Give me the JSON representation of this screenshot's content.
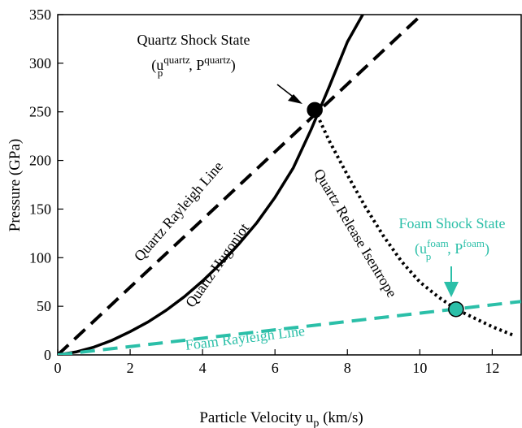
{
  "chart_data": {
    "type": "line",
    "xlabel": "Particle Velocity u",
    "xlabel_sub": "p",
    "xlabel_unit": " (km/s)",
    "ylabel": "Pressure (GPa)",
    "xlim": [
      0,
      12.8
    ],
    "ylim": [
      0,
      350
    ],
    "x_ticks": [
      0,
      2,
      4,
      6,
      8,
      10,
      12
    ],
    "y_ticks": [
      0,
      50,
      100,
      150,
      200,
      250,
      300,
      350
    ],
    "grid": false,
    "colors": {
      "black": "#000000",
      "foam": "#2bbfa8"
    },
    "series": [
      {
        "name": "Quartz Hugoniot",
        "style": "solid",
        "color": "#000000",
        "x": [
          0,
          0.5,
          1,
          1.5,
          2,
          2.5,
          3,
          3.5,
          4,
          4.5,
          5,
          5.5,
          6,
          6.5,
          7,
          7.5,
          8,
          8.5
        ],
        "y": [
          0,
          3,
          8,
          15,
          24,
          34,
          46,
          60,
          76,
          94,
          114,
          136,
          162,
          192,
          232,
          276,
          322,
          355
        ]
      },
      {
        "name": "Quartz Rayleigh Line",
        "style": "dashed",
        "color": "#000000",
        "x": [
          0,
          10.2
        ],
        "y": [
          0,
          355
        ]
      },
      {
        "name": "Quartz Release Isentrope",
        "style": "dotted",
        "color": "#000000",
        "x": [
          7.1,
          7.5,
          8,
          8.5,
          9,
          9.5,
          10,
          10.5,
          11,
          11.5,
          12,
          12.6
        ],
        "y": [
          252,
          220,
          185,
          152,
          122,
          96,
          75,
          60,
          47,
          38,
          29,
          20
        ]
      },
      {
        "name": "Foam Rayleigh Line",
        "style": "dashed",
        "color": "#2bbfa8",
        "x": [
          0,
          12.8
        ],
        "y": [
          0,
          55
        ]
      }
    ],
    "points": [
      {
        "name": "quartz-shock-state",
        "x": 7.1,
        "y": 252,
        "fill": "#000000"
      },
      {
        "name": "foam-shock-state",
        "x": 11.0,
        "y": 47,
        "fill": "#2bbfa8"
      }
    ],
    "annotations": {
      "quartz_state_title": "Quartz Shock State",
      "quartz_state_u": "u",
      "quartz_state_u_sub": "p",
      "quartz_state_u_sup": "quartz",
      "quartz_state_p": "P",
      "quartz_state_p_sup": "quartz",
      "foam_state_title": "Foam Shock State",
      "foam_state_u": "u",
      "foam_state_u_sub": "p",
      "foam_state_u_sup": "foam",
      "foam_state_p": "P",
      "foam_state_p_sup": "foam",
      "label_rayleigh": "Quartz Rayleigh Line",
      "label_hugoniot": "Quartz Hugoniot",
      "label_isentrope": "Quartz Release Isentrope",
      "label_foam_rayleigh": "Foam Rayleigh Line",
      "open_paren": "(",
      "comma": ", ",
      "close_paren": ")"
    }
  }
}
